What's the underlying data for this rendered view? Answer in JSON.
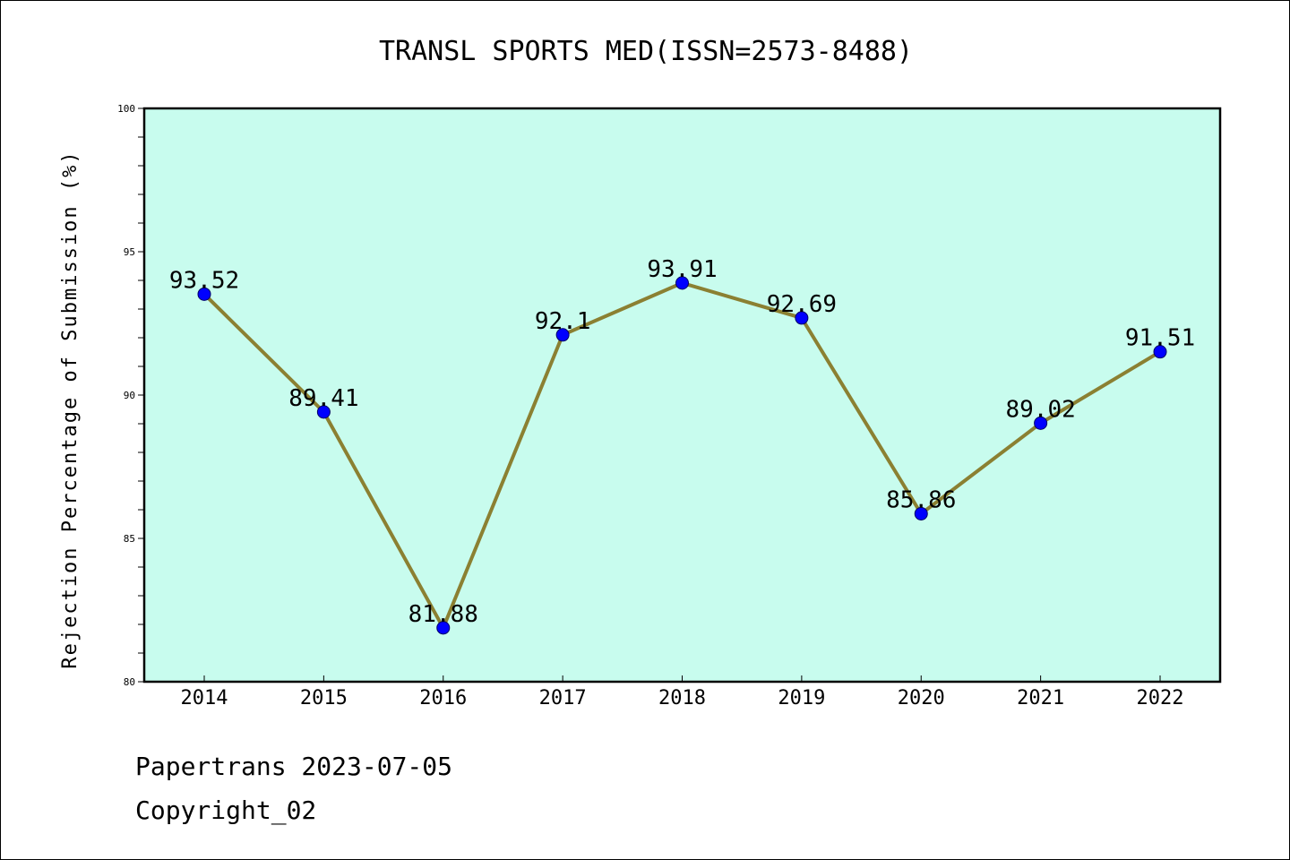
{
  "chart_data": {
    "type": "line",
    "title": "TRANSL SPORTS MED(ISSN=2573-8488)",
    "xlabel": "",
    "ylabel": "Rejection Percentage of Submission (%)",
    "categories": [
      "2014",
      "2015",
      "2016",
      "2017",
      "2018",
      "2019",
      "2020",
      "2021",
      "2022"
    ],
    "values": [
      93.52,
      89.41,
      81.88,
      92.1,
      93.91,
      92.69,
      85.86,
      89.02,
      91.51
    ],
    "data_labels": [
      "93.52",
      "89.41",
      "81.88",
      "92.1",
      "93.91",
      "92.69",
      "85.86",
      "89.02",
      "91.51"
    ],
    "ylim": [
      80,
      100
    ],
    "yticks": [
      "80",
      "85",
      "90",
      "95",
      "100"
    ],
    "grid": false,
    "legend": "none",
    "colors": {
      "plot_background": "#c8fcee",
      "line": "#8b8032",
      "marker": "#0000ff",
      "axis": "#000000"
    }
  },
  "footer": {
    "line1": "Papertrans 2023-07-05",
    "line2": "Copyright_02"
  }
}
